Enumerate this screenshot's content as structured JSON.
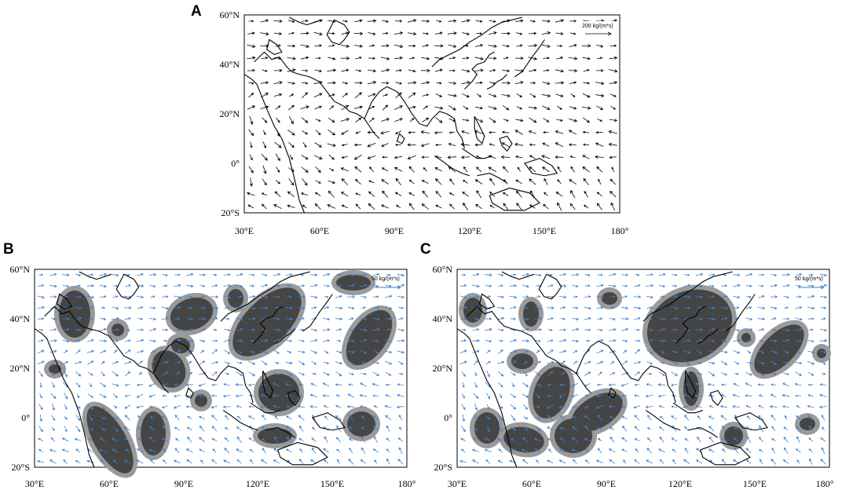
{
  "figure": {
    "panels": [
      {
        "letter": "A",
        "ref_vector_label": "200 kg/(m*s)",
        "lat_labels": [
          "60°N",
          "40°N",
          "20°N",
          "0°",
          "20°S"
        ],
        "lon_labels": [
          "30°E",
          "60°E",
          "90°E",
          "120°E",
          "150°E",
          "180°"
        ],
        "vector_color": "#000000"
      },
      {
        "letter": "B",
        "ref_vector_label": "50 kg/(m*s)",
        "lat_labels": [
          "60°N",
          "40°N",
          "20°N",
          "0°",
          "20°S"
        ],
        "lon_labels": [
          "30°E",
          "60°E",
          "90°E",
          "120°E",
          "150°E",
          "180°"
        ],
        "vector_color": "#3d7fd0"
      },
      {
        "letter": "C",
        "ref_vector_label": "50 kg/(m*s)",
        "lat_labels": [
          "60°N",
          "40°N",
          "20°N",
          "0°",
          "20°S"
        ],
        "lon_labels": [
          "30°E",
          "60°E",
          "90°E",
          "120°E",
          "150°E",
          "180°"
        ],
        "vector_color": "#3d7fd0"
      }
    ],
    "colors": {
      "shading_light": "#9a9a9a",
      "shading_dark": "#454545",
      "coastline": "#000000"
    }
  }
}
